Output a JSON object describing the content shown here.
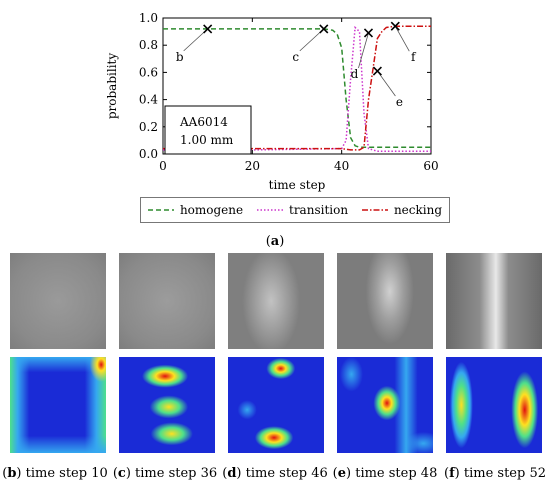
{
  "chart_data": {
    "type": "line",
    "xlabel": "time step",
    "ylabel": "probability",
    "xlim": [
      0,
      60
    ],
    "ylim": [
      0,
      1.0
    ],
    "xticks": [
      0,
      20,
      40,
      60
    ],
    "yticks": [
      0.0,
      0.2,
      0.4,
      0.6,
      0.8,
      1.0
    ],
    "grid": false,
    "legend_position": "bottom",
    "annotation_box": {
      "line1": "AA6014",
      "line2": "1.00 mm"
    },
    "series": [
      {
        "name": "homogene",
        "color": "#2e8b2e",
        "style": "dashed",
        "x": [
          0,
          36,
          38,
          39,
          40,
          41,
          42,
          43,
          44,
          45,
          46,
          47,
          48,
          50,
          55,
          60
        ],
        "y": [
          0.92,
          0.92,
          0.91,
          0.88,
          0.78,
          0.4,
          0.12,
          0.06,
          0.05,
          0.05,
          0.05,
          0.05,
          0.05,
          0.05,
          0.05,
          0.05
        ]
      },
      {
        "name": "transition",
        "color": "#cc33cc",
        "style": "dotted",
        "x": [
          0,
          20,
          40,
          41,
          42,
          43,
          44,
          45,
          46,
          47,
          48,
          49,
          50,
          55,
          60
        ],
        "y": [
          0.03,
          0.03,
          0.04,
          0.1,
          0.55,
          0.93,
          0.9,
          0.3,
          0.04,
          0.03,
          0.02,
          0.02,
          0.02,
          0.02,
          0.02
        ]
      },
      {
        "name": "necking",
        "color": "#cc1111",
        "style": "dashdot",
        "x": [
          0,
          20,
          40,
          42,
          44,
          45,
          46,
          47,
          48,
          49,
          50,
          52,
          55,
          60
        ],
        "y": [
          0.04,
          0.04,
          0.04,
          0.03,
          0.03,
          0.05,
          0.4,
          0.62,
          0.85,
          0.9,
          0.93,
          0.94,
          0.94,
          0.94
        ]
      }
    ],
    "markers": [
      {
        "label": "b",
        "x": 10,
        "y": 0.92
      },
      {
        "label": "c",
        "x": 36,
        "y": 0.92
      },
      {
        "label": "d",
        "x": 46,
        "y": 0.89
      },
      {
        "label": "e",
        "x": 48,
        "y": 0.61
      },
      {
        "label": "f",
        "x": 52,
        "y": 0.94
      }
    ]
  },
  "panel_a_label": {
    "letter": "a",
    "open": "(",
    "close": ")"
  },
  "captions": [
    {
      "letter": "b",
      "text": "time step 10"
    },
    {
      "letter": "c",
      "text": "time step 36"
    },
    {
      "letter": "d",
      "text": "time step 46"
    },
    {
      "letter": "e",
      "text": "time step 48"
    },
    {
      "letter": "f",
      "text": "time step 52"
    }
  ],
  "heatmap_colors": {
    "background": "#1a2bd6",
    "low": "#35a8f0",
    "mid": "#4ee08a",
    "high": "#ffe020",
    "peak": "#e01010"
  }
}
